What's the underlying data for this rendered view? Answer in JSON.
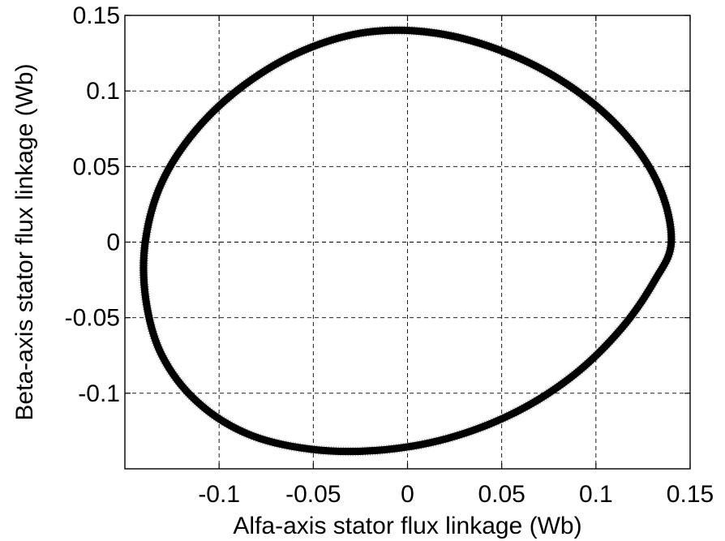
{
  "chart_data": {
    "type": "line",
    "title": "",
    "xlabel": "Alfa-axis stator flux linkage (Wb)",
    "ylabel": "Beta-axis stator flux linkage (Wb)",
    "xlim": [
      -0.15,
      0.15
    ],
    "ylim": [
      -0.15,
      0.15
    ],
    "xticks": [
      -0.1,
      -0.05,
      0,
      0.05,
      0.1,
      0.15
    ],
    "xtick_labels": [
      "-0.1",
      "-0.05",
      "0",
      "0.05",
      "0.1",
      "0.15"
    ],
    "yticks": [
      -0.1,
      -0.05,
      0,
      0.05,
      0.1,
      0.15
    ],
    "ytick_labels": [
      "-0.1",
      "-0.05",
      "0",
      "0.05",
      "0.1",
      "0.15"
    ],
    "grid": true,
    "grid_style": "dashed",
    "series": [
      {
        "color": "#000000",
        "description_shape": "ellipse-like closed trajectory",
        "x": [
          0.14,
          0.1337,
          0.1154,
          0.0874,
          0.0529,
          0.0155,
          -0.0215,
          -0.0556,
          -0.0865,
          -0.1123,
          -0.1306,
          -0.1392,
          -0.1389,
          -0.1306,
          -0.1121,
          -0.0851,
          -0.0522,
          -0.016,
          0.0212,
          0.057,
          0.0883,
          0.1135,
          0.1311,
          0.14
        ],
        "y": [
          0.0,
          0.0365,
          0.0716,
          0.1022,
          0.1251,
          0.1382,
          0.1389,
          0.1266,
          0.1041,
          0.0741,
          0.0389,
          0.0,
          -0.0379,
          -0.0743,
          -0.1051,
          -0.1268,
          -0.1369,
          -0.1378,
          -0.1299,
          -0.1128,
          -0.0879,
          -0.0572,
          -0.0256,
          0.0
        ]
      }
    ]
  }
}
